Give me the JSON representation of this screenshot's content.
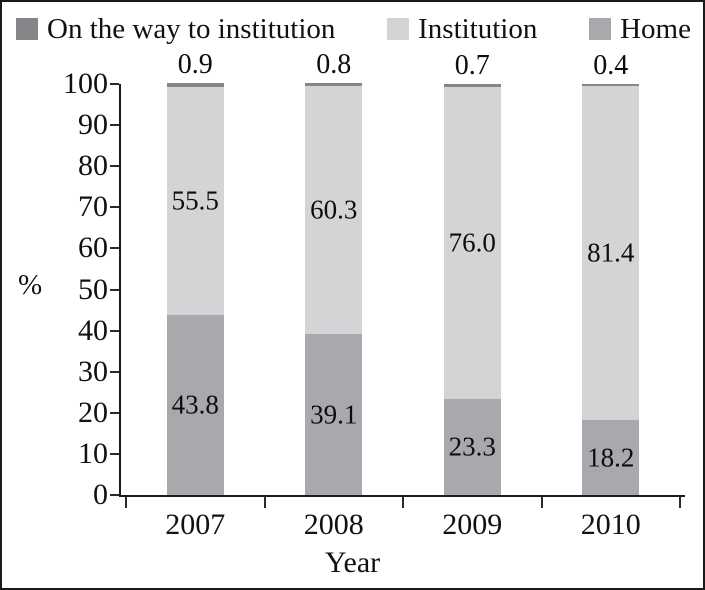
{
  "legend": {
    "items": [
      {
        "label": "On the way to institution",
        "color": "#85858a"
      },
      {
        "label": "Institution",
        "color": "#d4d4d6"
      },
      {
        "label": "Home",
        "color": "#a9a9ad"
      }
    ]
  },
  "chart_data": {
    "type": "bar",
    "stacked": true,
    "categories": [
      "2007",
      "2008",
      "2009",
      "2010"
    ],
    "series": [
      {
        "name": "Home",
        "color": "#a9a9ad",
        "label_placement": "inside",
        "values": [
          43.8,
          39.1,
          23.3,
          18.2
        ]
      },
      {
        "name": "Institution",
        "color": "#d4d4d6",
        "label_placement": "inside",
        "values": [
          55.5,
          60.3,
          76.0,
          81.4
        ]
      },
      {
        "name": "On the way to institution",
        "color": "#85858a",
        "label_placement": "above",
        "values": [
          0.9,
          0.8,
          0.7,
          0.4
        ]
      }
    ],
    "xlabel": "Year",
    "ylabel": "%",
    "ylim": [
      0,
      100
    ],
    "ytick_step": 10,
    "value_label_decimals": 1,
    "legend_position": "top",
    "grid": false
  }
}
